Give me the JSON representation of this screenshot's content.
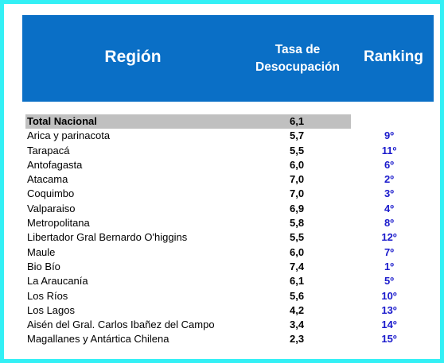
{
  "header": {
    "region": "Región",
    "rate_line1": "Tasa de",
    "rate_line2": "Desocupación",
    "ranking": "Ranking"
  },
  "total": {
    "name": "Total Nacional",
    "rate": "6,1"
  },
  "rows": [
    {
      "name": "Arica y parinacota",
      "rate": "5,7",
      "rank": "9º"
    },
    {
      "name": "Tarapacá",
      "rate": "5,5",
      "rank": "11º"
    },
    {
      "name": "Antofagasta",
      "rate": "6,0",
      "rank": "6º"
    },
    {
      "name": "Atacama",
      "rate": "7,0",
      "rank": "2º"
    },
    {
      "name": "Coquimbo",
      "rate": "7,0",
      "rank": "3º"
    },
    {
      "name": "Valparaiso",
      "rate": "6,9",
      "rank": "4º"
    },
    {
      "name": "Metropolitana",
      "rate": "5,8",
      "rank": "8º"
    },
    {
      "name": "Libertador Gral Bernardo O'higgins",
      "rate": "5,5",
      "rank": "12º"
    },
    {
      "name": "Maule",
      "rate": "6,0",
      "rank": "7º"
    },
    {
      "name": "Bio Bío",
      "rate": "7,4",
      "rank": "1º"
    },
    {
      "name": "La Araucanía",
      "rate": "6,1",
      "rank": "5º"
    },
    {
      "name": "Los Ríos",
      "rate": "5,6",
      "rank": "10º"
    },
    {
      "name": "Los Lagos",
      "rate": "4,2",
      "rank": "13º"
    },
    {
      "name": "Aisén del Gral. Carlos Ibañez del Campo",
      "rate": "3,4",
      "rank": "14º"
    },
    {
      "name": "Magallanes y Antártica Chilena",
      "rate": "2,3",
      "rank": "15º"
    }
  ],
  "colors": {
    "border": "#33f0f5",
    "header_bg": "#0a6fc6",
    "total_bg": "#c0c0c0",
    "rank_text": "#1a1acc"
  }
}
